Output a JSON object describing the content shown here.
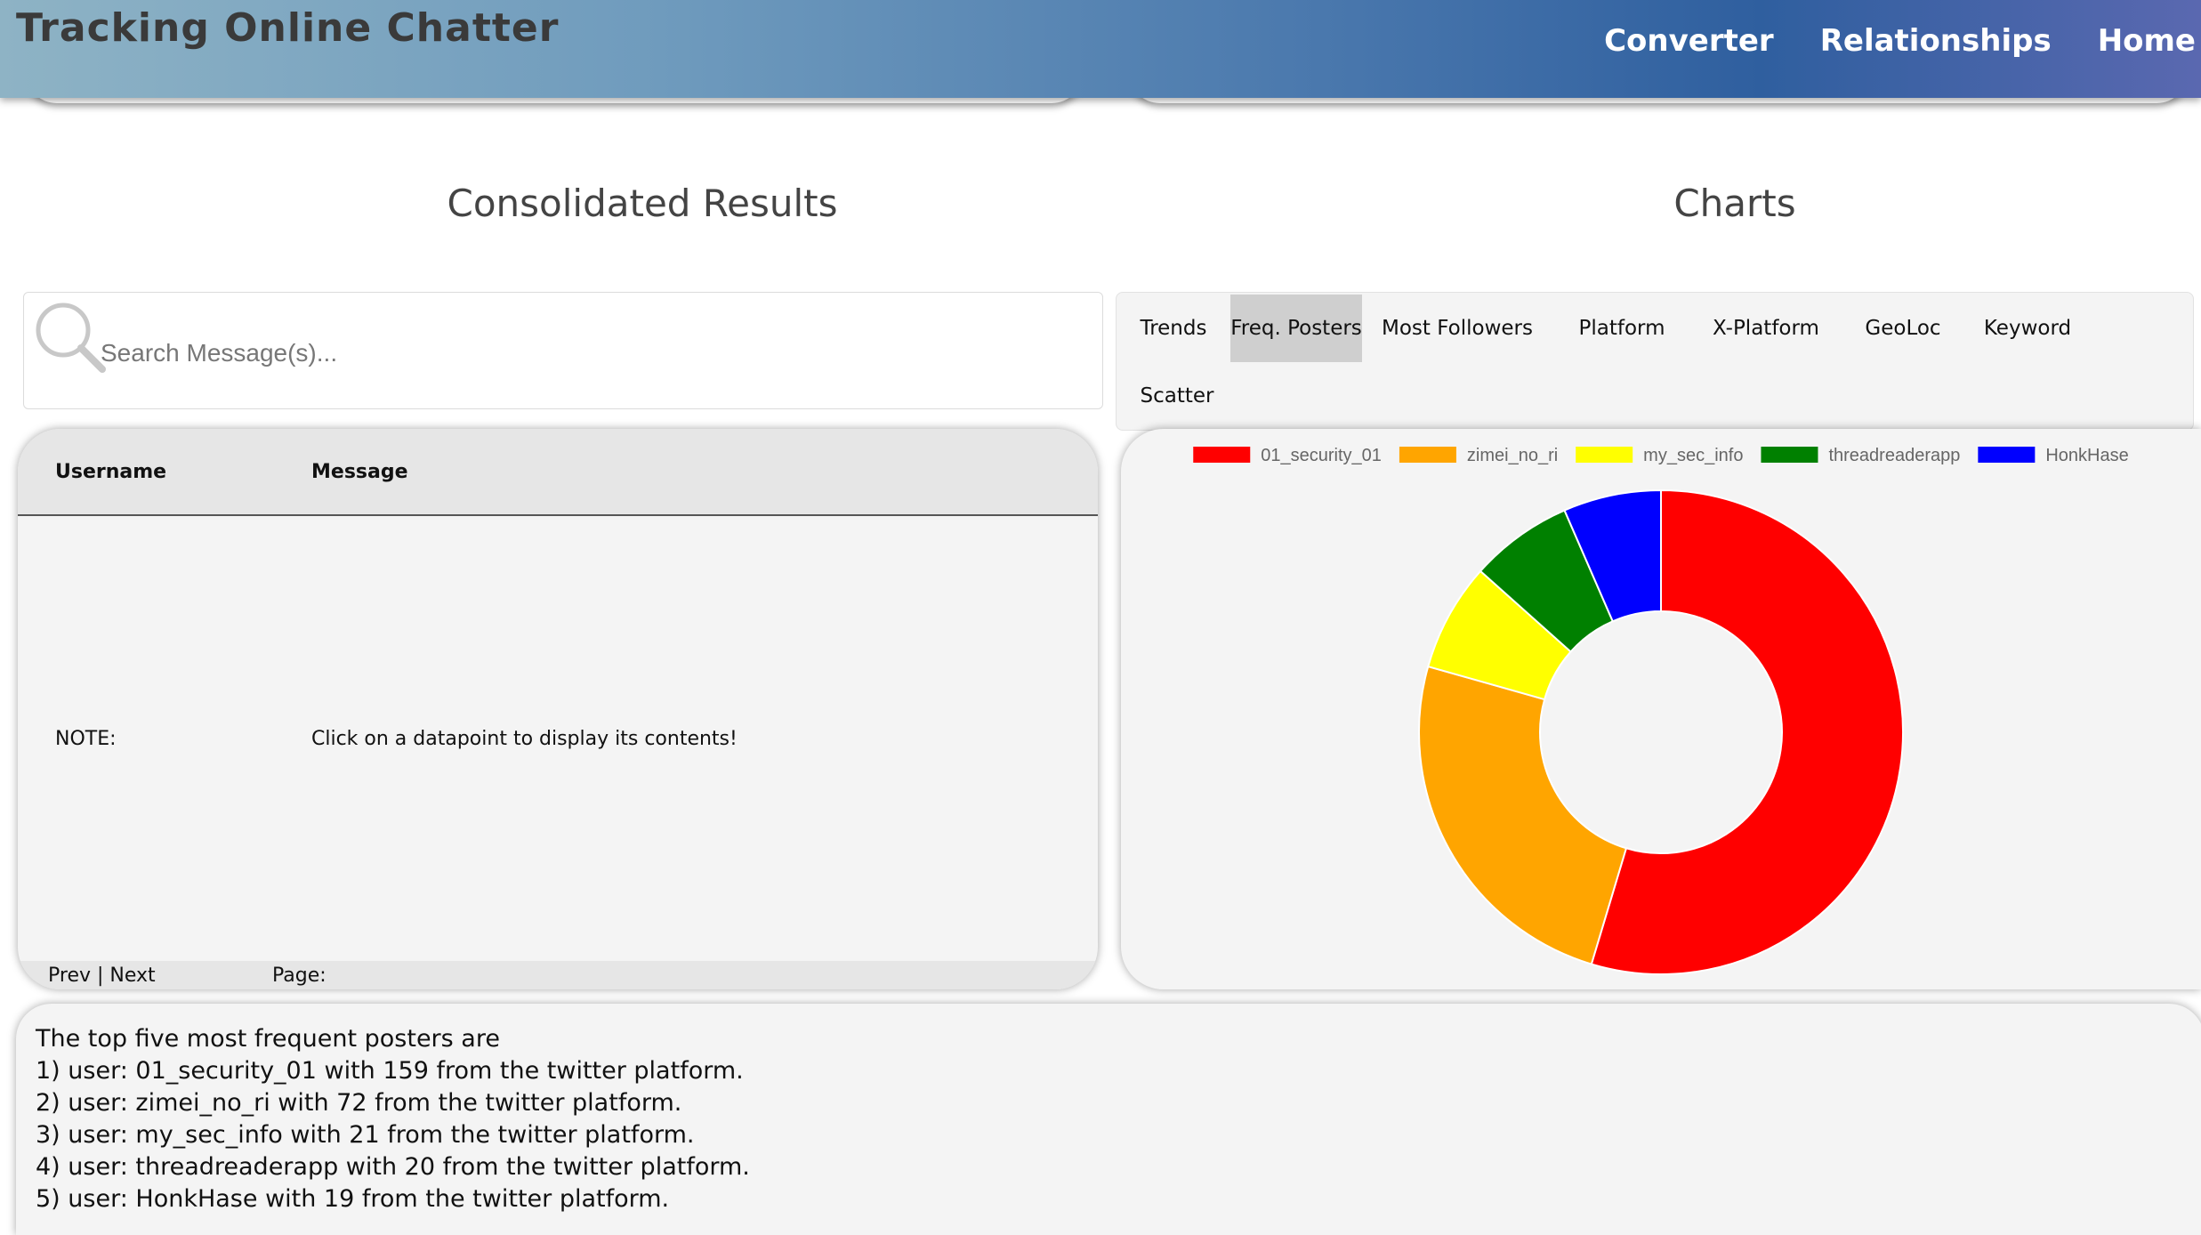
{
  "header": {
    "title": "Tracking Online Chatter",
    "nav": [
      "Converter",
      "Relationships",
      "Home"
    ]
  },
  "sections": {
    "left_title": "Consolidated Results",
    "right_title": "Charts"
  },
  "search": {
    "placeholder": "Search Message(s)..."
  },
  "tabs": [
    {
      "label": "Trends",
      "active": false
    },
    {
      "label": "Freq. Posters",
      "active": true
    },
    {
      "label": "Most Followers",
      "active": false
    },
    {
      "label": "Platform",
      "active": false
    },
    {
      "label": "X-Platform",
      "active": false
    },
    {
      "label": "GeoLoc",
      "active": false
    },
    {
      "label": "Keyword",
      "active": false
    },
    {
      "label": "Scatter",
      "active": false
    }
  ],
  "table": {
    "headers": [
      "Username",
      "Message"
    ],
    "rows": [
      [
        "NOTE:",
        "Click on a datapoint to display its contents!"
      ]
    ],
    "pager": {
      "prev": "Prev",
      "separator": "|",
      "next": "Next",
      "page_label": "Page:"
    }
  },
  "chart_data": {
    "type": "pie",
    "variant": "doughnut",
    "legend_position": "top",
    "categories": [
      "01_security_01",
      "zimei_no_ri",
      "my_sec_info",
      "threadreaderapp",
      "HonkHase"
    ],
    "values": [
      159,
      72,
      21,
      20,
      19
    ],
    "colors": [
      "#ff0000",
      "#ffa500",
      "#ffff00",
      "#008000",
      "#0000ff"
    ]
  },
  "summary": {
    "lines": [
      "The top five most frequent posters are",
      "1) user: 01_security_01 with 159 from the twitter platform.",
      "2) user: zimei_no_ri with 72 from the twitter platform.",
      "3) user: my_sec_info with 21 from the twitter platform.",
      "4) user: threadreaderapp with 20 from the twitter platform.",
      "5) user: HonkHase with 19 from the twitter platform."
    ]
  }
}
